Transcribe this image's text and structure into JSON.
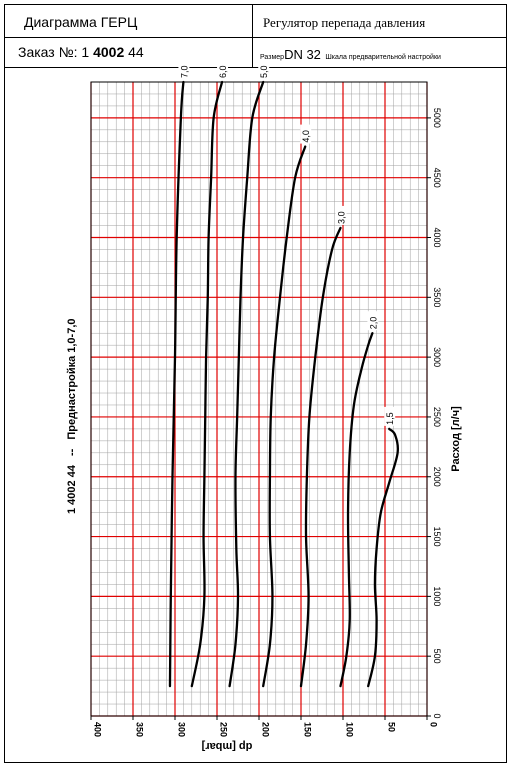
{
  "header": {
    "title": "Диаграмма ГЕРЦ",
    "product": "Регулятор перепада давления",
    "order_label": "Заказ №: 1 ",
    "order_bold": "4002",
    "order_suffix": " 44",
    "size_label": "Размер",
    "size_value": "DN 32",
    "scale_label": "Шкала предварительной настройки"
  },
  "side_title": {
    "code": "1 4002 44",
    "separator": "--",
    "text": "Преднастройка 1,0-7,0"
  },
  "chart_data": {
    "type": "line",
    "xlabel": "dp [mbar]",
    "ylabel": "Расход [л/ч]",
    "xlim": [
      400,
      0
    ],
    "ylim": [
      0,
      5300
    ],
    "x_ticks": [
      "400",
      "350",
      "300",
      "250",
      "200",
      "150",
      "100",
      "50",
      "0"
    ],
    "y_ticks": [
      "0",
      "500",
      "1000",
      "1500",
      "2000",
      "2500",
      "3000",
      "3500",
      "4000",
      "4500",
      "5000"
    ],
    "grid": true,
    "series": [
      {
        "name": "7,0",
        "points": [
          [
            306,
            250
          ],
          [
            305,
            1000
          ],
          [
            303,
            2000
          ],
          [
            300,
            3000
          ],
          [
            298,
            4000
          ],
          [
            293,
            5000
          ],
          [
            290,
            5300
          ]
        ]
      },
      {
        "name": "6,0",
        "points": [
          [
            280,
            250
          ],
          [
            270,
            600
          ],
          [
            265,
            1000
          ],
          [
            266,
            1500
          ],
          [
            265,
            2000
          ],
          [
            264,
            2500
          ],
          [
            263,
            3000
          ],
          [
            261,
            3500
          ],
          [
            260,
            4000
          ],
          [
            257,
            4500
          ],
          [
            254,
            5000
          ],
          [
            244,
            5300
          ]
        ]
      },
      {
        "name": "5,0",
        "points": [
          [
            235,
            250
          ],
          [
            228,
            600
          ],
          [
            225,
            1000
          ],
          [
            227,
            1400
          ],
          [
            228,
            2000
          ],
          [
            226,
            2500
          ],
          [
            224,
            3000
          ],
          [
            222,
            3500
          ],
          [
            219,
            4000
          ],
          [
            214,
            4500
          ],
          [
            208,
            5000
          ],
          [
            195,
            5300
          ]
        ]
      },
      {
        "name": "4,0",
        "points": [
          [
            195,
            250
          ],
          [
            187,
            600
          ],
          [
            184,
            1000
          ],
          [
            187,
            1500
          ],
          [
            187,
            2000
          ],
          [
            186,
            2500
          ],
          [
            182,
            3000
          ],
          [
            175,
            3500
          ],
          [
            167,
            4000
          ],
          [
            157,
            4500
          ],
          [
            145,
            4760
          ]
        ]
      },
      {
        "name": "3,0",
        "points": [
          [
            150,
            250
          ],
          [
            144,
            600
          ],
          [
            141,
            1000
          ],
          [
            144,
            1500
          ],
          [
            143,
            2000
          ],
          [
            140,
            2500
          ],
          [
            133,
            3000
          ],
          [
            124,
            3500
          ],
          [
            113,
            3900
          ],
          [
            103,
            4080
          ]
        ]
      },
      {
        "name": "2,0",
        "points": [
          [
            103,
            250
          ],
          [
            96,
            500
          ],
          [
            92,
            800
          ],
          [
            93,
            1200
          ],
          [
            94,
            1700
          ],
          [
            92,
            2200
          ],
          [
            87,
            2600
          ],
          [
            78,
            2900
          ],
          [
            70,
            3100
          ],
          [
            65,
            3200
          ]
        ]
      },
      {
        "name": "1,5",
        "points": [
          [
            70,
            250
          ],
          [
            62,
            500
          ],
          [
            60,
            800
          ],
          [
            62,
            1100
          ],
          [
            60,
            1400
          ],
          [
            55,
            1700
          ],
          [
            45,
            1950
          ],
          [
            35,
            2200
          ],
          [
            38,
            2350
          ],
          [
            45,
            2400
          ]
        ]
      }
    ]
  }
}
